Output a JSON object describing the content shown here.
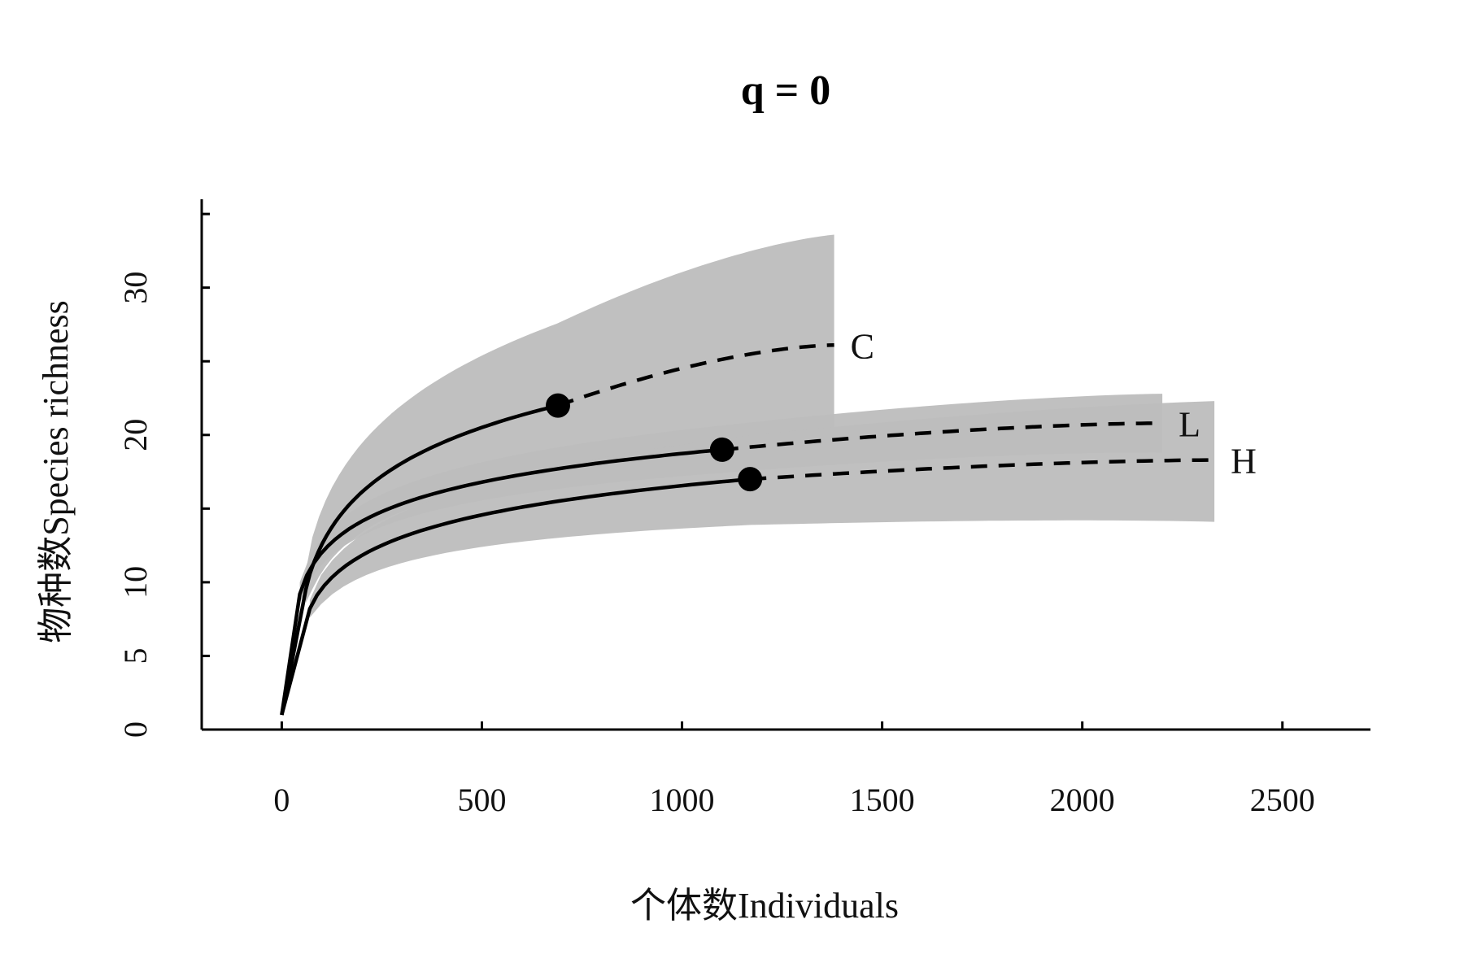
{
  "chart_data": {
    "type": "line",
    "title": "q = 0",
    "xlabel": "个体数Individuals",
    "ylabel": "物种数Species richness",
    "xlim": [
      -200,
      2720
    ],
    "ylim": [
      0,
      36
    ],
    "x_ticks": [
      0,
      500,
      1000,
      1500,
      2000,
      2500
    ],
    "x_tick_labels": [
      "0",
      "500",
      "1000",
      "1500",
      "2000",
      "2500"
    ],
    "y_ticks": [
      0,
      5,
      10,
      20,
      30
    ],
    "y_tick_labels": [
      "0",
      "5",
      "10",
      "20",
      "30"
    ],
    "y_minor_ticks": [
      15,
      25,
      35
    ],
    "grid": false,
    "legend": "none",
    "colors": {
      "line": "#000000",
      "band": "#bdbdbd",
      "band_opacity": 0.95
    },
    "series": [
      {
        "name": "C",
        "observed_x": 690,
        "observed_y": 22.0,
        "end_x": 1380,
        "end_y": 26.1,
        "start_y": 1.0,
        "first_sample_x": 60,
        "first_sample_y": 9.5,
        "band_start_upper": 10.8,
        "band_start_lower": 8.6,
        "band_end_upper": 33.6,
        "band_end_lower": 19.6
      },
      {
        "name": "L",
        "observed_x": 1100,
        "observed_y": 19.0,
        "end_x": 2200,
        "end_y": 20.8,
        "start_y": 1.0,
        "first_sample_x": 45,
        "first_sample_y": 9.2,
        "band_start_upper": 10.0,
        "band_start_lower": 8.6,
        "band_end_upper": 22.8,
        "band_end_lower": 18.8
      },
      {
        "name": "H",
        "observed_x": 1170,
        "observed_y": 17.0,
        "end_x": 2330,
        "end_y": 18.3,
        "start_y": 1.0,
        "first_sample_x": 70,
        "first_sample_y": 8.2,
        "band_start_upper": 8.8,
        "band_start_lower": 7.6,
        "band_end_upper": 22.3,
        "band_end_lower": 14.1
      }
    ]
  }
}
